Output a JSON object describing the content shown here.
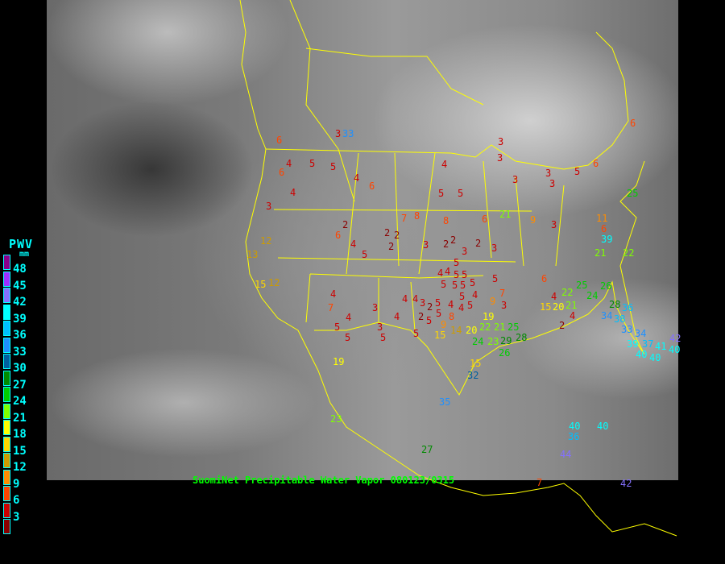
{
  "caption": "SuomiNet Precipitable Water Vapor 080123/0315",
  "legend": {
    "title": "PWV",
    "unit": "mm",
    "ticks": [
      "48",
      "45",
      "42",
      "39",
      "36",
      "33",
      "30",
      "27",
      "24",
      "21",
      "18",
      "15",
      "12",
      "9",
      "6",
      "3"
    ],
    "colors": [
      "#8b008b",
      "#9b30ff",
      "#8470ff",
      "#00ffff",
      "#00bfff",
      "#1e90ff",
      "#005f9f",
      "#008b00",
      "#00cd00",
      "#7fff00",
      "#ffff00",
      "#ffd700",
      "#cd9b00",
      "#ff8c00",
      "#ff4500",
      "#cd0000",
      "#8b0000"
    ]
  },
  "map_colors": {
    "border": "#ffff00",
    "background": "#000000"
  },
  "stations": [
    "3",
    "6",
    "6",
    "4",
    "5",
    "5",
    "4",
    "3",
    "6",
    "4",
    "2",
    "6",
    "4",
    "5",
    "7",
    "8",
    "8",
    "2",
    "2",
    "3",
    "2",
    "2",
    "3",
    "2",
    "3",
    "4",
    "2",
    "4",
    "3",
    "3",
    "3",
    "5",
    "5",
    "5",
    "5",
    "5",
    "5",
    "4",
    "5",
    "5",
    "5",
    "4",
    "4",
    "5",
    "5",
    "5",
    "4",
    "4",
    "4",
    "3",
    "5",
    "4",
    "3",
    "3",
    "5",
    "2",
    "5",
    "5",
    "4",
    "2",
    "5",
    "6",
    "9",
    "15",
    "14",
    "20",
    "22",
    "19",
    "24",
    "21",
    "25",
    "28",
    "23",
    "26",
    "29",
    "8",
    "9",
    "5",
    "7",
    "7",
    "5",
    "4",
    "3",
    "6",
    "11",
    "6",
    "9",
    "12",
    "13",
    "12",
    "15",
    "19",
    "15",
    "32",
    "35",
    "23",
    "27",
    "15",
    "20",
    "21",
    "22",
    "25",
    "26",
    "28",
    "34",
    "38",
    "36",
    "33",
    "34",
    "39",
    "40",
    "37",
    "40",
    "41",
    "40",
    "42",
    "39",
    "21",
    "22",
    "24",
    "25",
    "21",
    "3",
    "4",
    "2",
    "4",
    "3",
    "3",
    "5",
    "6",
    "6",
    "7",
    "40",
    "36",
    "44",
    "40",
    "42",
    "33"
  ]
}
